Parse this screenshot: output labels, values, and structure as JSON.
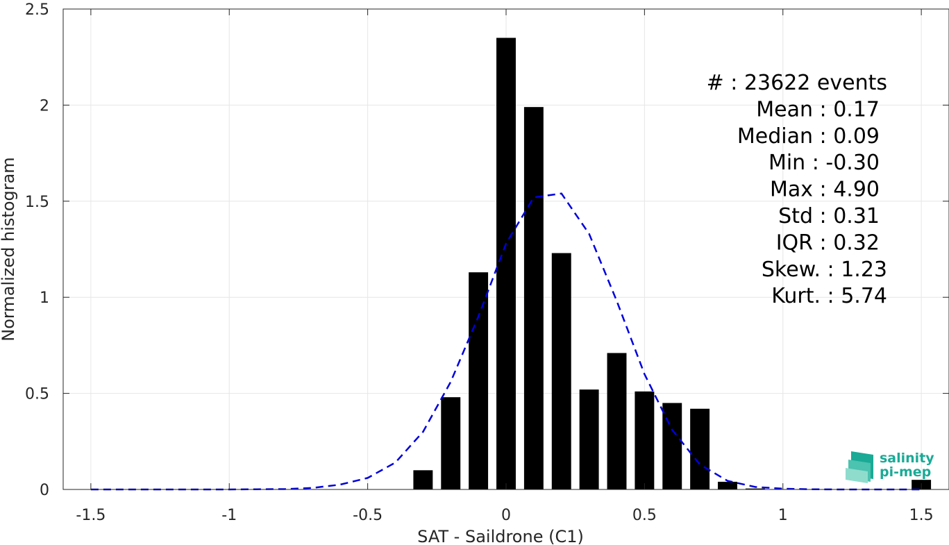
{
  "chart_data": {
    "type": "bar",
    "title": "",
    "xlabel": "SAT - Saildrone (C1)",
    "ylabel": "Normalized histogram",
    "xlim": [
      -1.6,
      1.6
    ],
    "ylim": [
      0,
      2.5
    ],
    "grid": true,
    "xticks": [
      -1.5,
      -1,
      -0.5,
      0,
      0.5,
      1,
      1.5
    ],
    "xtick_labels": [
      "-1.5",
      "-1",
      "-0.5",
      "0",
      "0.5",
      "1",
      "1.5"
    ],
    "yticks": [
      0,
      0.5,
      1,
      1.5,
      2,
      2.5
    ],
    "ytick_labels": [
      "0",
      "0.5",
      "1",
      "1.5",
      "2",
      "2.5"
    ],
    "bar_width": 0.07,
    "bar_color": "#000000",
    "bars": {
      "x": [
        -0.3,
        -0.2,
        -0.1,
        0.0,
        0.1,
        0.2,
        0.3,
        0.4,
        0.5,
        0.6,
        0.7,
        0.8,
        0.9,
        1.5
      ],
      "values": [
        0.1,
        0.48,
        1.13,
        2.35,
        1.99,
        1.23,
        0.52,
        0.71,
        0.51,
        0.45,
        0.42,
        0.04,
        0.005,
        0.05
      ]
    },
    "fit_curve": {
      "style": "dashed",
      "color": "#0000dd",
      "x": [
        -1.5,
        -1.4,
        -1.3,
        -1.2,
        -1.1,
        -1.0,
        -0.9,
        -0.8,
        -0.7,
        -0.6,
        -0.5,
        -0.4,
        -0.3,
        -0.2,
        -0.1,
        0.0,
        0.1,
        0.2,
        0.3,
        0.4,
        0.5,
        0.6,
        0.7,
        0.8,
        0.9,
        1.0,
        1.1,
        1.2,
        1.3,
        1.4,
        1.5
      ],
      "y": [
        0,
        0,
        0,
        0,
        0,
        0,
        0.001,
        0.002,
        0.008,
        0.025,
        0.06,
        0.14,
        0.3,
        0.56,
        0.9,
        1.28,
        1.52,
        1.54,
        1.33,
        0.98,
        0.6,
        0.31,
        0.13,
        0.045,
        0.013,
        0.004,
        0.001,
        0,
        0,
        0,
        0
      ]
    },
    "annotation": [
      "#  : 23622 events",
      "Mean : 0.17",
      "Median : 0.09",
      "Min : -0.30",
      "Max : 4.90",
      "Std : 0.31",
      "IQR : 0.32",
      "Skew. : 1.23",
      "Kurt. : 5.74"
    ]
  },
  "logo": {
    "line1": "salinity",
    "line2": "pi-mep"
  },
  "colors": {
    "grid": "#e6e6e6",
    "axis": "#262626",
    "logo": "#1aaa96"
  }
}
